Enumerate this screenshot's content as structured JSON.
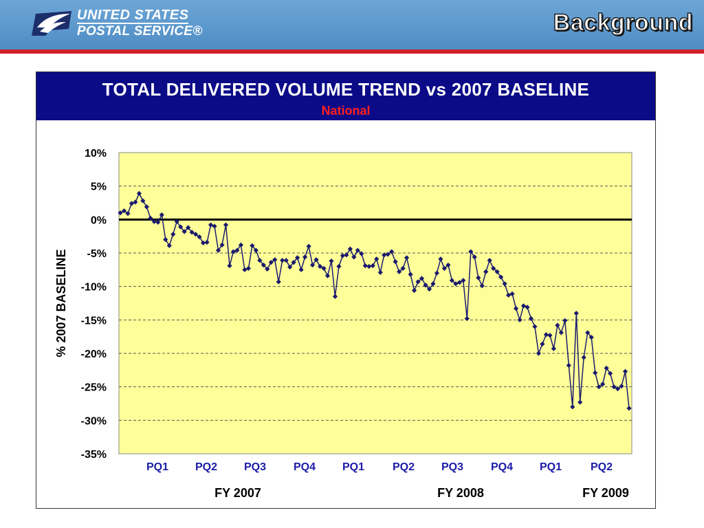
{
  "header": {
    "brand_line1": "UNITED STATES",
    "brand_line2": "POSTAL SERVICE®",
    "logo_icon": "eagle-logo-icon",
    "section_title": "Background",
    "colors": {
      "bar": "#5b97cc",
      "stripe": "#d0202a"
    }
  },
  "chart_data": {
    "type": "line",
    "title": "TOTAL DELIVERED VOLUME TREND vs 2007 BASELINE",
    "subtitle": "National",
    "ylabel": "% 2007 BASELINE",
    "xlabel": "",
    "ylim": [
      -35,
      10
    ],
    "yticks": [
      10,
      5,
      0,
      -5,
      -10,
      -15,
      -20,
      -25,
      -30,
      -35
    ],
    "ytick_labels": [
      "10%",
      "5%",
      "0%",
      "-5%",
      "-10%",
      "-15%",
      "-20%",
      "-25%",
      "-30%",
      "-35%"
    ],
    "grid": "horizontal-dashed",
    "zero_line": true,
    "plot_background": "#ffff99",
    "series_color": "#1a1a6e",
    "period_labels": [
      "PQ1",
      "PQ2",
      "PQ3",
      "PQ4",
      "PQ1",
      "PQ2",
      "PQ3",
      "PQ4",
      "PQ1",
      "PQ2"
    ],
    "fiscal_year_labels": [
      "FY 2007",
      "FY 2008",
      "FY 2009"
    ],
    "series": [
      {
        "values": [
          1.0,
          1.3,
          0.9,
          2.4,
          2.6,
          3.9,
          2.8,
          1.9,
          0.2,
          -0.3,
          -0.4,
          0.7,
          -3.0,
          -3.9,
          -2.2,
          -0.3,
          -1.1,
          -1.8,
          -1.2,
          -1.9,
          -2.2,
          -2.6,
          -3.5,
          -3.4,
          -0.8,
          -1.0,
          -4.6,
          -3.8,
          -0.8,
          -6.9,
          -4.8,
          -4.6,
          -3.8,
          -7.5,
          -7.3,
          -3.9,
          -4.6,
          -6.1,
          -6.8,
          -7.4,
          -6.4,
          -6.0,
          -9.3,
          -6.1,
          -6.1,
          -7.1,
          -6.4,
          -5.7,
          -7.5,
          -5.6,
          -4.0,
          -6.8,
          -6.0,
          -7.0,
          -7.3,
          -8.4,
          -6.2,
          -11.5,
          -7.0,
          -5.4,
          -5.3,
          -4.4,
          -5.6,
          -4.6,
          -5.1,
          -6.9,
          -7.0,
          -6.9,
          -5.9,
          -7.9,
          -5.3,
          -5.2,
          -4.8,
          -6.3,
          -7.8,
          -7.3,
          -5.7,
          -8.2,
          -10.6,
          -9.3,
          -8.8,
          -9.8,
          -10.4,
          -9.6,
          -8.0,
          -5.9,
          -7.3,
          -6.8,
          -9.1,
          -9.6,
          -9.4,
          -9.1,
          -14.8,
          -4.8,
          -5.6,
          -8.7,
          -9.9,
          -7.8,
          -6.1,
          -7.3,
          -7.8,
          -8.6,
          -9.6,
          -11.3,
          -11.1,
          -13.3,
          -15.0,
          -12.9,
          -13.1,
          -14.8,
          -16.0,
          -20.0,
          -18.6,
          -17.2,
          -17.3,
          -19.3,
          -15.8,
          -16.9,
          -15.1,
          -21.8,
          -28.0,
          -14.0,
          -27.3,
          -20.6,
          -16.9,
          -17.6,
          -22.9,
          -25.0,
          -24.6,
          -22.2,
          -23.0,
          -25.0,
          -25.3,
          -24.9,
          -22.7,
          -28.2
        ]
      }
    ]
  }
}
